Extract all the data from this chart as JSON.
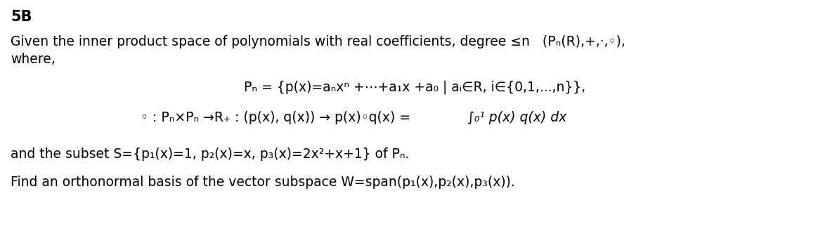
{
  "title": "5B",
  "line1a": "Given the inner product space of polynomials with real coefficients, degree ≤n   (Pₙ(R),+,·,◦),",
  "line1b": "where,",
  "centered1": "Pₙ = {p(x)=aₙxⁿ +⋯+a₁x +a₀ | aᵢ∈R, i∈{0,1,...,n}},",
  "centered2_plain": "◦ : Pₙ×Pₙ →R₊ : (p(x), q(x)) → p(x)◦q(x) = ",
  "centered2_italic": "∫₀¹ p(x) q(x) dx",
  "line3": "and the subset S={p₁(x)=1, p₂(x)=x, p₃(x)=2x²+x+1} of Pₙ.",
  "line4": "Find an orthonormal basis of the vector subspace W=span(p₁(x),p₂(x),p₃(x)).",
  "bg_color": "#ffffff",
  "text_color": "#000000",
  "font_size": 13.5,
  "title_font_size": 15
}
